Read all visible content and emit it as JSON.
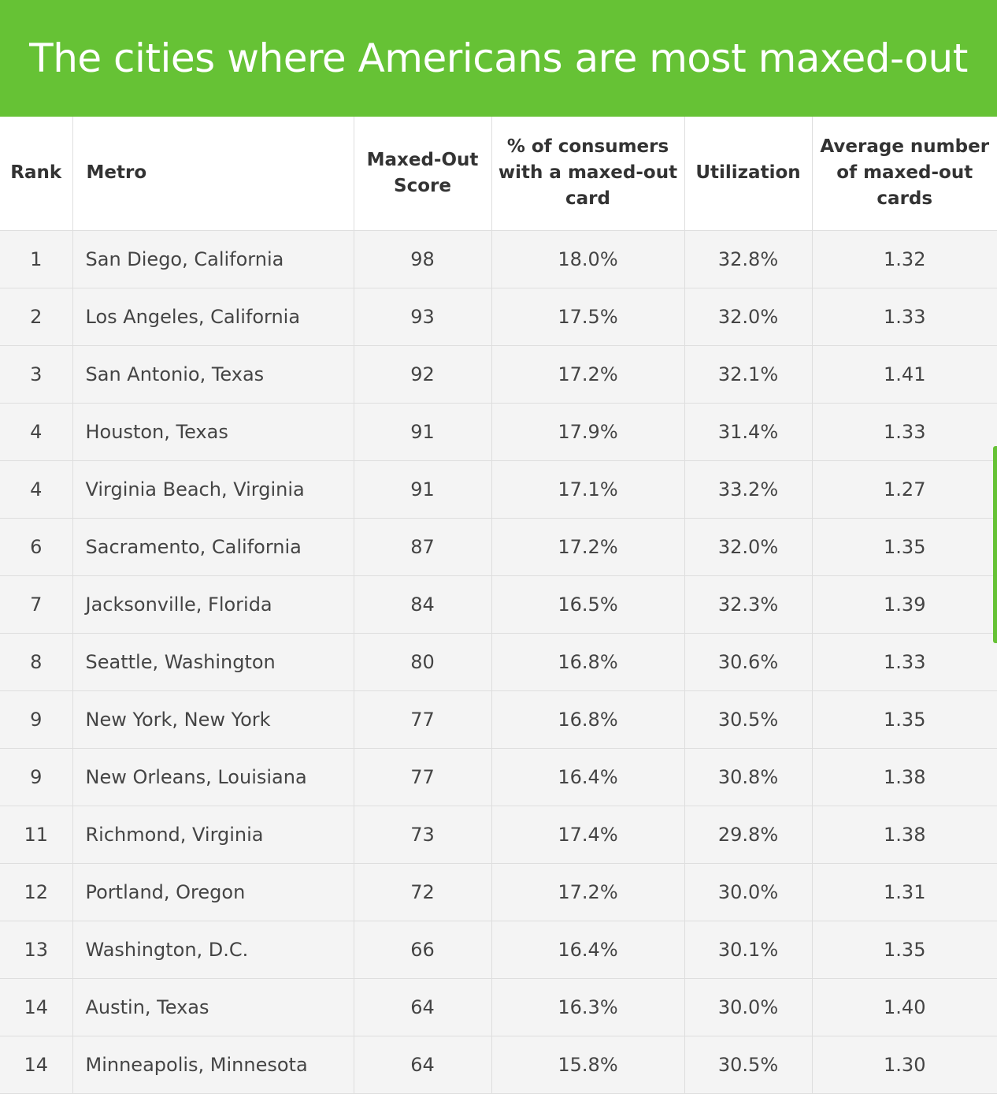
{
  "title": "The cities where Americans are most maxed-out",
  "colors": {
    "accent": "#66c235"
  },
  "table": {
    "headers": {
      "rank": "Rank",
      "metro": "Metro",
      "score": "Maxed-Out Score",
      "pct": "% of consumers with a maxed-out card",
      "util": "Utilization",
      "avg": "Average number of maxed-out cards"
    },
    "rows": [
      {
        "rank": "1",
        "metro": "San Diego, California",
        "score": "98",
        "pct": "18.0%",
        "util": "32.8%",
        "avg": "1.32"
      },
      {
        "rank": "2",
        "metro": "Los Angeles, California",
        "score": "93",
        "pct": "17.5%",
        "util": "32.0%",
        "avg": "1.33"
      },
      {
        "rank": "3",
        "metro": "San Antonio, Texas",
        "score": "92",
        "pct": "17.2%",
        "util": "32.1%",
        "avg": "1.41"
      },
      {
        "rank": "4",
        "metro": "Houston, Texas",
        "score": "91",
        "pct": "17.9%",
        "util": "31.4%",
        "avg": "1.33"
      },
      {
        "rank": "4",
        "metro": "Virginia Beach, Virginia",
        "score": "91",
        "pct": "17.1%",
        "util": "33.2%",
        "avg": "1.27"
      },
      {
        "rank": "6",
        "metro": "Sacramento, California",
        "score": "87",
        "pct": "17.2%",
        "util": "32.0%",
        "avg": "1.35"
      },
      {
        "rank": "7",
        "metro": "Jacksonville, Florida",
        "score": "84",
        "pct": "16.5%",
        "util": "32.3%",
        "avg": "1.39"
      },
      {
        "rank": "8",
        "metro": "Seattle, Washington",
        "score": "80",
        "pct": "16.8%",
        "util": "30.6%",
        "avg": "1.33"
      },
      {
        "rank": "9",
        "metro": "New York, New York",
        "score": "77",
        "pct": "16.8%",
        "util": "30.5%",
        "avg": "1.35"
      },
      {
        "rank": "9",
        "metro": "New Orleans, Louisiana",
        "score": "77",
        "pct": "16.4%",
        "util": "30.8%",
        "avg": "1.38"
      },
      {
        "rank": "11",
        "metro": "Richmond, Virginia",
        "score": "73",
        "pct": "17.4%",
        "util": "29.8%",
        "avg": "1.38"
      },
      {
        "rank": "12",
        "metro": "Portland, Oregon",
        "score": "72",
        "pct": "17.2%",
        "util": "30.0%",
        "avg": "1.31"
      },
      {
        "rank": "13",
        "metro": "Washington, D.C.",
        "score": "66",
        "pct": "16.4%",
        "util": "30.1%",
        "avg": "1.35"
      },
      {
        "rank": "14",
        "metro": "Austin, Texas",
        "score": "64",
        "pct": "16.3%",
        "util": "30.0%",
        "avg": "1.40"
      },
      {
        "rank": "14",
        "metro": "Minneapolis, Minnesota",
        "score": "64",
        "pct": "15.8%",
        "util": "30.5%",
        "avg": "1.30"
      }
    ]
  }
}
